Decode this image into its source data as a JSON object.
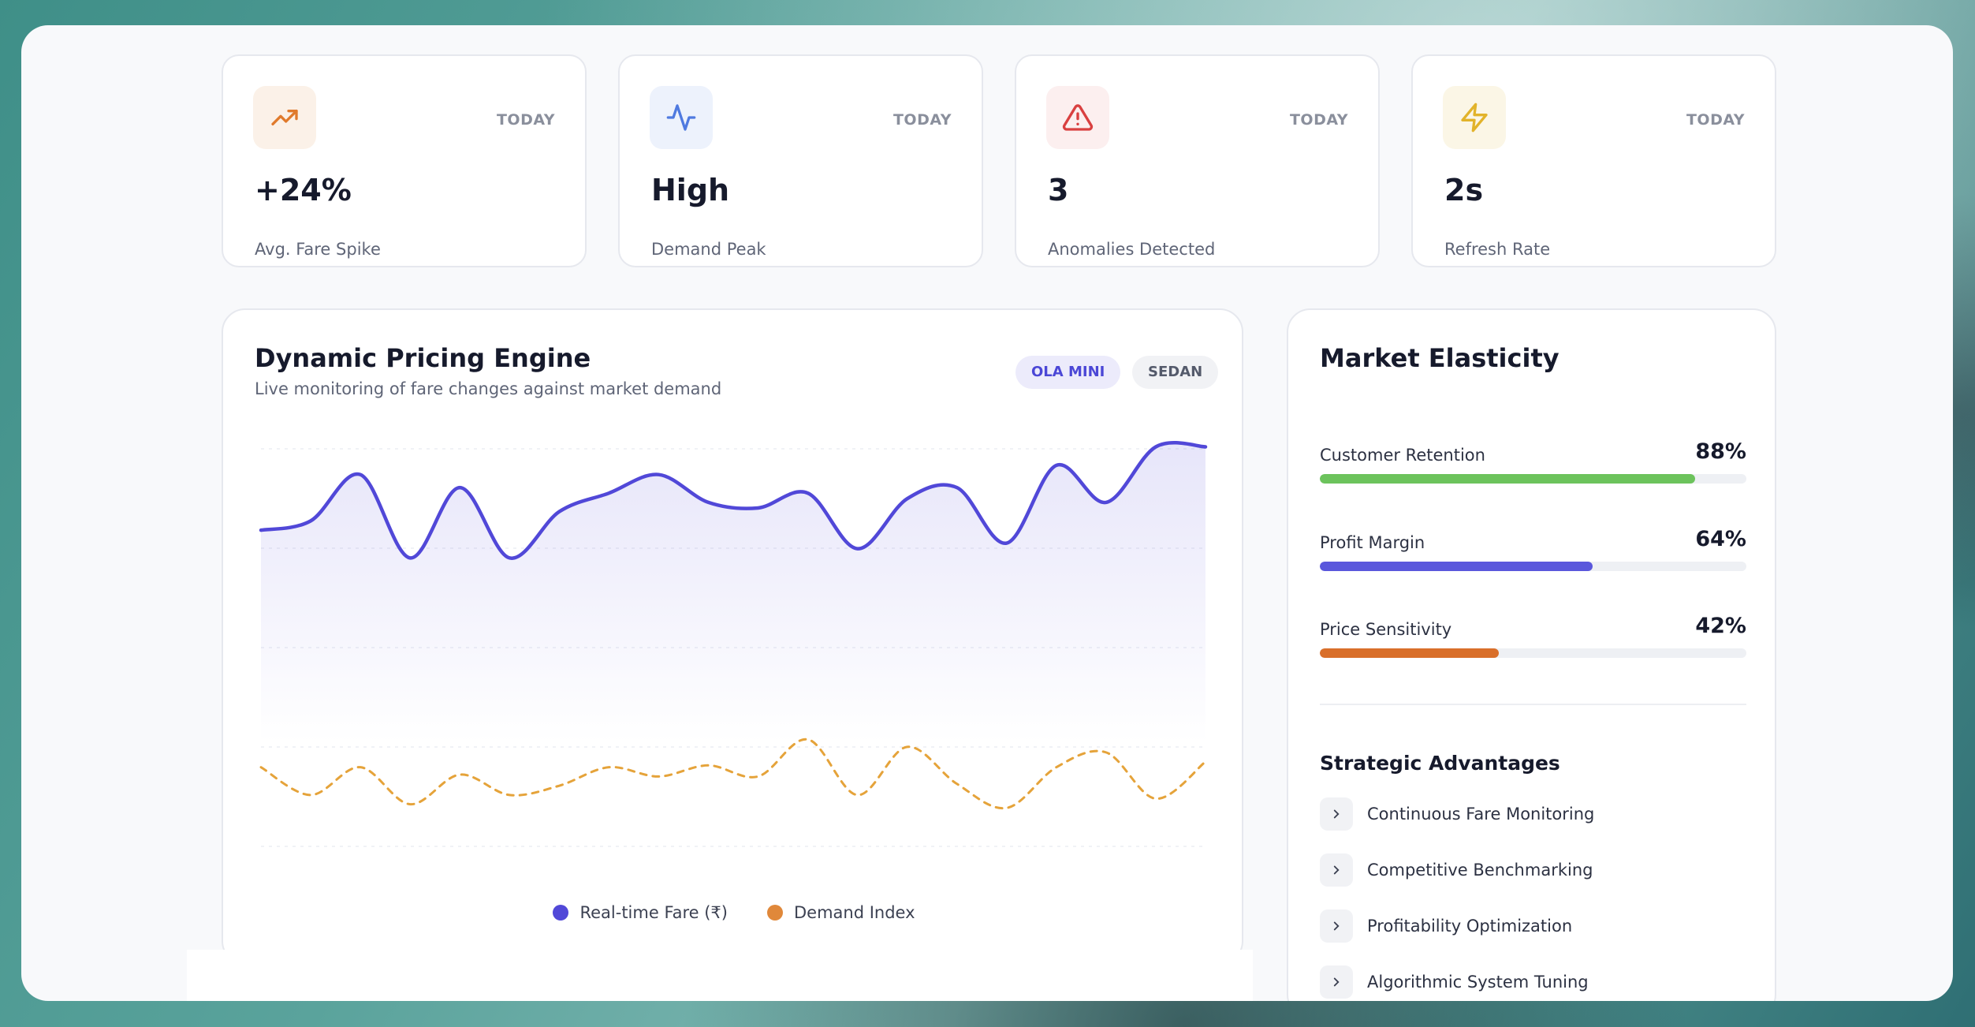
{
  "kpis": [
    {
      "value": "+24%",
      "label": "Avg. Fare Spike",
      "badge": "TODAY",
      "icon": "trending-up-icon",
      "color": "#e07a2c",
      "bg": "#fbf1e8"
    },
    {
      "value": "High",
      "label": "Demand Peak",
      "badge": "TODAY",
      "icon": "activity-icon",
      "color": "#4f7ae0",
      "bg": "#edf2fc"
    },
    {
      "value": "3",
      "label": "Anomalies Detected",
      "badge": "TODAY",
      "icon": "alert-triangle-icon",
      "color": "#d94040",
      "bg": "#fcefef"
    },
    {
      "value": "2s",
      "label": "Refresh Rate",
      "badge": "TODAY",
      "icon": "zap-icon",
      "color": "#e2b32a",
      "bg": "#fbf6e6"
    }
  ],
  "chart": {
    "title": "Dynamic Pricing Engine",
    "subtitle": "Live monitoring of fare changes against market demand",
    "pills": [
      "OLA MINI",
      "SEDAN"
    ],
    "legend": [
      "Real-time Fare (₹)",
      "Demand Index"
    ]
  },
  "chart_data": {
    "type": "line",
    "x": [
      0,
      1,
      2,
      3,
      4,
      5,
      6,
      7,
      8,
      9,
      10,
      11,
      12,
      13,
      14,
      15,
      16,
      17,
      18,
      19
    ],
    "series": [
      {
        "name": "Real-time Fare (₹)",
        "color": "#5148d8",
        "area": true,
        "values": [
          55,
          60,
          85,
          40,
          78,
          40,
          65,
          75,
          85,
          70,
          67,
          75,
          45,
          72,
          78,
          48,
          90,
          70,
          100,
          100
        ]
      },
      {
        "name": "Demand Index",
        "color": "#e5a33a",
        "dashed": true,
        "values": [
          -73,
          -88,
          -73,
          -93,
          -77,
          -88,
          -83,
          -73,
          -78,
          -72,
          -78,
          -58,
          -88,
          -62,
          -82,
          -95,
          -73,
          -65,
          -90,
          -70
        ]
      }
    ],
    "ylim": [
      -120,
      110
    ],
    "grid": true
  },
  "elasticity": {
    "title": "Market Elasticity",
    "metrics": [
      {
        "label": "Customer Retention",
        "value": "88%",
        "fraction": 0.88,
        "color": "#6cc35c"
      },
      {
        "label": "Profit Margin",
        "value": "64%",
        "fraction": 0.64,
        "color": "#5a57dc"
      },
      {
        "label": "Price Sensitivity",
        "value": "42%",
        "fraction": 0.42,
        "color": "#d96f2a"
      }
    ],
    "advantages_title": "Strategic Advantages",
    "advantages": [
      "Continuous Fare Monitoring",
      "Competitive Benchmarking",
      "Profitability Optimization",
      "Algorithmic System Tuning"
    ]
  }
}
